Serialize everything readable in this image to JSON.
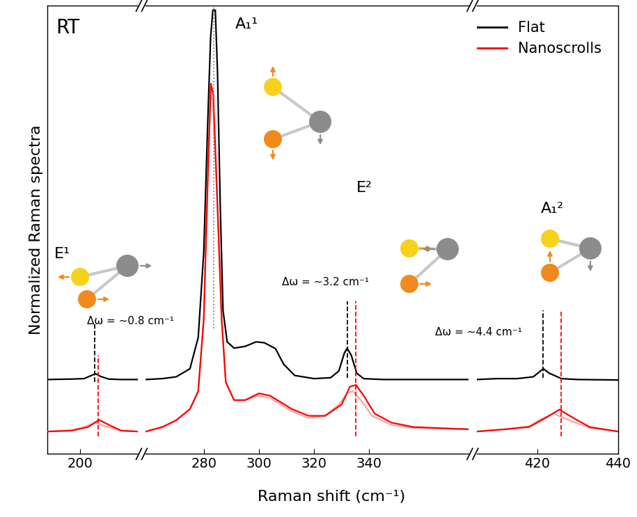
{
  "chart_data": {
    "type": "line",
    "x_label": "Raman shift (cm⁻¹)",
    "y_label": "Normalized Raman spectra",
    "ylim": [
      0,
      1
    ],
    "tick_labels": "x",
    "legend": "upper right",
    "x_segments": [
      {
        "xlim": [
          192,
          214
        ],
        "xticks": [
          200
        ]
      },
      {
        "xlim": [
          259,
          376
        ],
        "xticks": [
          280,
          300,
          320,
          340
        ]
      },
      {
        "xlim": [
          405,
          440
        ],
        "xticks": [
          420,
          440
        ]
      }
    ],
    "series": [
      {
        "name": "Flat",
        "color": "#000000",
        "x": [
          192,
          198,
          201,
          203,
          203.8,
          205,
          207,
          210,
          214,
          236,
          259,
          265,
          270,
          275,
          278,
          280,
          281.5,
          282.5,
          283.3,
          284.2,
          285,
          286,
          287,
          288.5,
          291,
          295,
          299,
          302,
          306,
          309,
          313,
          320,
          326,
          329,
          331,
          332,
          333.5,
          335.5,
          338,
          345,
          376,
          390,
          405,
          410,
          415,
          419,
          421.5,
          423,
          426,
          430,
          440
        ],
        "values": [
          0.166,
          0.167,
          0.168,
          0.176,
          0.179,
          0.173,
          0.167,
          0.166,
          0.166,
          null,
          0.166,
          0.168,
          0.172,
          0.19,
          0.26,
          0.45,
          0.75,
          0.93,
          0.99,
          0.99,
          0.85,
          0.55,
          0.32,
          0.25,
          0.236,
          0.24,
          0.25,
          0.248,
          0.235,
          0.2,
          0.175,
          0.168,
          0.17,
          0.185,
          0.225,
          0.236,
          0.22,
          0.18,
          0.168,
          0.166,
          0.166,
          null,
          0.166,
          0.168,
          0.168,
          0.172,
          0.19,
          0.18,
          0.168,
          0.166,
          0.165
        ]
      },
      {
        "name": "Nanoscrolls",
        "color": "#ff0000",
        "x": [
          192,
          198,
          202,
          204.6,
          207,
          210,
          214,
          236,
          259,
          265,
          270,
          275,
          278,
          280,
          281.5,
          282.6,
          283.5,
          285,
          286.5,
          288,
          291,
          295,
          300,
          304,
          308,
          312,
          318,
          324,
          330,
          333,
          335.2,
          338,
          342,
          348,
          356,
          376,
          390,
          405,
          412,
          418,
          422,
          425.5,
          429,
          433,
          440
        ],
        "values": [
          0.05,
          0.052,
          0.06,
          0.076,
          0.065,
          0.052,
          0.05,
          null,
          0.05,
          0.06,
          0.075,
          0.1,
          0.14,
          0.3,
          0.62,
          0.826,
          0.8,
          0.55,
          0.3,
          0.16,
          0.12,
          0.12,
          0.135,
          0.13,
          0.115,
          0.1,
          0.085,
          0.085,
          0.11,
          0.15,
          0.154,
          0.13,
          0.09,
          0.07,
          0.06,
          0.055,
          null,
          0.05,
          0.055,
          0.06,
          0.08,
          0.099,
          0.08,
          0.06,
          0.05
        ]
      },
      {
        "color": "#f4a6a6",
        "x": [
          192,
          198,
          201,
          203.6,
          206,
          210,
          214,
          236,
          259,
          265,
          270,
          275,
          278,
          280,
          281.5,
          282.4,
          283.3,
          285,
          286.5,
          288,
          291,
          295,
          300,
          304,
          308,
          312,
          318,
          324,
          329,
          332,
          334,
          337,
          341,
          348,
          356,
          376,
          390,
          405,
          412,
          418,
          421,
          424,
          428,
          433,
          440
        ],
        "values": [
          0.05,
          0.053,
          0.06,
          0.07,
          0.062,
          0.052,
          0.05,
          null,
          0.05,
          0.06,
          0.075,
          0.1,
          0.14,
          0.3,
          0.62,
          0.8,
          0.79,
          0.55,
          0.3,
          0.16,
          0.12,
          0.12,
          0.13,
          0.125,
          0.11,
          0.095,
          0.08,
          0.085,
          0.11,
          0.135,
          0.14,
          0.12,
          0.085,
          0.065,
          0.058,
          0.055,
          null,
          0.05,
          0.055,
          0.062,
          0.078,
          0.09,
          0.075,
          0.058,
          0.05
        ]
      }
    ],
    "reference_lines": [
      {
        "x": 283.5,
        "color": "#808080",
        "line_style": "dotted"
      },
      {
        "x": 203.6,
        "color": "#000000",
        "line_style": "dashed"
      },
      {
        "x": 204.4,
        "color": "#ff0000",
        "line_style": "dashed"
      },
      {
        "x": 332,
        "color": "#000000",
        "line_style": "dashed"
      },
      {
        "x": 335.2,
        "color": "#ff0000",
        "line_style": "dashed"
      },
      {
        "x": 421.5,
        "color": "#000000",
        "line_style": "dashed"
      },
      {
        "x": 425.9,
        "color": "#ff0000",
        "line_style": "dashed"
      }
    ],
    "annotations": [
      {
        "text": "RT"
      },
      {
        "text": "E¹"
      },
      {
        "text": "A₁¹"
      },
      {
        "text": "E²"
      },
      {
        "text": "A₁²"
      },
      {
        "text": "Δω = ~0.8 cm⁻¹"
      },
      {
        "text": "Δω = ~3.2 cm⁻¹"
      },
      {
        "text": "Δω = ~4.4 cm⁻¹"
      }
    ]
  }
}
